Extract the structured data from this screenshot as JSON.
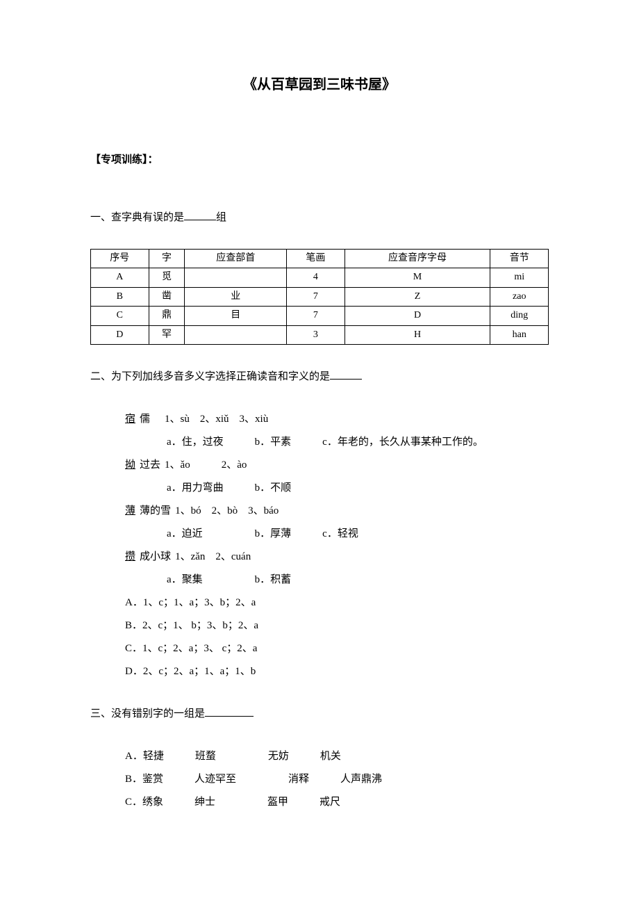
{
  "title": "《从百草园到三味书屋》",
  "sectionHead": "【专项训练】：",
  "q1": {
    "prefix": "一、查字典有误的是",
    "suffix": "组",
    "table": {
      "headers": [
        "序号",
        "字",
        "应查部首",
        "笔画",
        "应查音序字母",
        "音节"
      ],
      "rows": [
        [
          "A",
          "觅",
          "",
          "4",
          "M",
          "mi"
        ],
        [
          "B",
          "凿",
          "业",
          "7",
          "Z",
          "zao"
        ],
        [
          "C",
          "鼎",
          "目",
          "7",
          "D",
          "ding"
        ],
        [
          "D",
          "罕",
          "",
          "3",
          "H",
          "han"
        ]
      ]
    }
  },
  "q2": {
    "stem": "二、为下列加线多音多义字选择正确读音和字义的是",
    "items": [
      {
        "word": "宿儒",
        "uIndex": 0,
        "pinyin": "　1、sù　2、xiǔ　3、xiù",
        "def": "a．住，过夜　　　b．平素　　　c．年老的，长久从事某种工作的。"
      },
      {
        "word": "拗过去",
        "uIndex": 0,
        "pinyin": "1、ǎo　　　2、ào",
        "def": "a．用力弯曲　　　b．不顺"
      },
      {
        "word": "薄薄的雪",
        "uIndex": 0,
        "pinyin": "1、bó　2、bò　3、báo",
        "def": "a．迫近　　　　　b．厚薄　　　c．轻视"
      },
      {
        "word": "攒成小球",
        "uIndex": 0,
        "pinyin": "1、zǎn　2、cuán",
        "def": "a．聚集　　　　　b．积蓄"
      }
    ],
    "choices": [
      "A．1、c；1、a；3、b；2、a",
      "B．2、c；1、 b；3、b；2、a",
      "C．1、c；2、a；3、 c；2、a",
      "D．2、c；2、a；1、a；1、b"
    ]
  },
  "q3": {
    "stem": "三、没有错别字的一组是",
    "choices": [
      "A．轻捷　　　班蝥　　　　　无妨　　　机关",
      "B．鉴赏　　　人迹罕至　　　　　消释　　　人声鼎沸",
      "C．绣象　　　绅士　　　　　盔甲　　　戒尺"
    ]
  }
}
